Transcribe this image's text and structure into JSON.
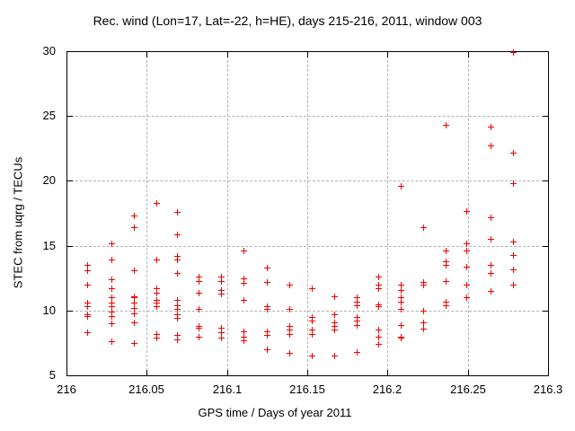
{
  "window": {
    "background": "#ffffff",
    "border_color": "#000000",
    "text_color": "#000000"
  },
  "chart_data": {
    "type": "scatter",
    "title": "Rec. wind (Lon=17, Lat=-22, h=HE), days 215-216, 2011, window 003",
    "xlabel": "GPS time / Days of year 2011",
    "ylabel": "STEC from uqrg / TECUs",
    "xlim": [
      216,
      216.3
    ],
    "ylim": [
      5,
      30
    ],
    "xticks": [
      216,
      216.05,
      216.1,
      216.15,
      216.2,
      216.25,
      216.3
    ],
    "xtick_labels": [
      "216",
      "216.05",
      "216.1",
      "216.15",
      "216.2",
      "216.25",
      "216.3"
    ],
    "yticks": [
      5,
      10,
      15,
      20,
      25,
      30
    ],
    "ytick_labels": [
      "5",
      "10",
      "15",
      "20",
      "25",
      "30"
    ],
    "grid": true,
    "grid_color": "#b0b0b0",
    "legend": "none",
    "marker": "plus",
    "marker_color": "#ee0000",
    "series": [
      {
        "name": "STEC",
        "points": [
          [
            216.013,
            13.5
          ],
          [
            216.013,
            13.1
          ],
          [
            216.013,
            12.0
          ],
          [
            216.013,
            10.6
          ],
          [
            216.013,
            10.3
          ],
          [
            216.013,
            9.7
          ],
          [
            216.013,
            9.6
          ],
          [
            216.013,
            8.3
          ],
          [
            216.028,
            15.2
          ],
          [
            216.028,
            13.9
          ],
          [
            216.028,
            12.4
          ],
          [
            216.028,
            11.7
          ],
          [
            216.028,
            11.0
          ],
          [
            216.028,
            10.6
          ],
          [
            216.028,
            10.3
          ],
          [
            216.028,
            9.9
          ],
          [
            216.028,
            9.6
          ],
          [
            216.028,
            9.0
          ],
          [
            216.028,
            7.6
          ],
          [
            216.042,
            17.3
          ],
          [
            216.042,
            16.4
          ],
          [
            216.042,
            13.1
          ],
          [
            216.042,
            11.1
          ],
          [
            216.042,
            11.0
          ],
          [
            216.042,
            10.6
          ],
          [
            216.042,
            10.2
          ],
          [
            216.042,
            9.8
          ],
          [
            216.042,
            9.1
          ],
          [
            216.042,
            7.5
          ],
          [
            216.056,
            18.3
          ],
          [
            216.056,
            13.9
          ],
          [
            216.056,
            11.7
          ],
          [
            216.056,
            11.4
          ],
          [
            216.056,
            10.8
          ],
          [
            216.056,
            10.6
          ],
          [
            216.056,
            10.3
          ],
          [
            216.056,
            8.2
          ],
          [
            216.056,
            7.9
          ],
          [
            216.069,
            17.6
          ],
          [
            216.069,
            15.9
          ],
          [
            216.069,
            14.2
          ],
          [
            216.069,
            13.9
          ],
          [
            216.069,
            12.9
          ],
          [
            216.069,
            10.8
          ],
          [
            216.069,
            10.4
          ],
          [
            216.069,
            10.1
          ],
          [
            216.069,
            9.7
          ],
          [
            216.069,
            9.4
          ],
          [
            216.069,
            8.1
          ],
          [
            216.069,
            7.8
          ],
          [
            216.082,
            12.6
          ],
          [
            216.082,
            12.3
          ],
          [
            216.082,
            11.4
          ],
          [
            216.082,
            10.1
          ],
          [
            216.082,
            8.8
          ],
          [
            216.082,
            8.7
          ],
          [
            216.082,
            8.0
          ],
          [
            216.096,
            12.6
          ],
          [
            216.096,
            12.3
          ],
          [
            216.096,
            11.6
          ],
          [
            216.096,
            11.3
          ],
          [
            216.096,
            8.7
          ],
          [
            216.096,
            8.3
          ],
          [
            216.096,
            7.9
          ],
          [
            216.11,
            14.6
          ],
          [
            216.11,
            12.5
          ],
          [
            216.11,
            12.1
          ],
          [
            216.11,
            10.8
          ],
          [
            216.11,
            8.4
          ],
          [
            216.11,
            8.0
          ],
          [
            216.11,
            7.7
          ],
          [
            216.125,
            13.3
          ],
          [
            216.125,
            12.2
          ],
          [
            216.125,
            10.3
          ],
          [
            216.125,
            10.1
          ],
          [
            216.125,
            8.4
          ],
          [
            216.125,
            8.1
          ],
          [
            216.125,
            7.0
          ],
          [
            216.139,
            12.0
          ],
          [
            216.139,
            10.1
          ],
          [
            216.139,
            8.8
          ],
          [
            216.139,
            8.5
          ],
          [
            216.139,
            8.2
          ],
          [
            216.139,
            6.7
          ],
          [
            216.153,
            11.7
          ],
          [
            216.153,
            9.5
          ],
          [
            216.153,
            9.2
          ],
          [
            216.153,
            8.5
          ],
          [
            216.153,
            8.2
          ],
          [
            216.153,
            6.5
          ],
          [
            216.167,
            11.1
          ],
          [
            216.167,
            9.7
          ],
          [
            216.167,
            9.1
          ],
          [
            216.167,
            8.8
          ],
          [
            216.167,
            8.5
          ],
          [
            216.167,
            6.5
          ],
          [
            216.181,
            11.0
          ],
          [
            216.181,
            10.7
          ],
          [
            216.181,
            10.4
          ],
          [
            216.181,
            9.5
          ],
          [
            216.181,
            9.2
          ],
          [
            216.181,
            8.9
          ],
          [
            216.181,
            6.8
          ],
          [
            216.194,
            12.6
          ],
          [
            216.194,
            12.0
          ],
          [
            216.194,
            11.7
          ],
          [
            216.194,
            10.5
          ],
          [
            216.194,
            10.3
          ],
          [
            216.194,
            8.5
          ],
          [
            216.194,
            8.0
          ],
          [
            216.194,
            7.4
          ],
          [
            216.208,
            19.6
          ],
          [
            216.208,
            12.0
          ],
          [
            216.208,
            11.6
          ],
          [
            216.208,
            11.0
          ],
          [
            216.208,
            10.7
          ],
          [
            216.208,
            10.1
          ],
          [
            216.208,
            8.9
          ],
          [
            216.208,
            8.0
          ],
          [
            216.208,
            7.9
          ],
          [
            216.222,
            16.4
          ],
          [
            216.222,
            12.2
          ],
          [
            216.222,
            12.0
          ],
          [
            216.222,
            10.0
          ],
          [
            216.222,
            9.1
          ],
          [
            216.222,
            8.6
          ],
          [
            216.236,
            24.3
          ],
          [
            216.236,
            14.6
          ],
          [
            216.236,
            13.8
          ],
          [
            216.236,
            13.5
          ],
          [
            216.236,
            12.3
          ],
          [
            216.236,
            10.7
          ],
          [
            216.236,
            10.4
          ],
          [
            216.249,
            17.7
          ],
          [
            216.249,
            15.2
          ],
          [
            216.249,
            14.6
          ],
          [
            216.249,
            13.4
          ],
          [
            216.249,
            12.0
          ],
          [
            216.249,
            11.0
          ],
          [
            216.264,
            24.2
          ],
          [
            216.264,
            22.7
          ],
          [
            216.264,
            17.2
          ],
          [
            216.264,
            15.5
          ],
          [
            216.264,
            13.5
          ],
          [
            216.264,
            12.9
          ],
          [
            216.264,
            11.5
          ],
          [
            216.278,
            29.9
          ],
          [
            216.278,
            22.2
          ],
          [
            216.278,
            19.8
          ],
          [
            216.278,
            15.3
          ],
          [
            216.278,
            14.3
          ],
          [
            216.278,
            13.2
          ],
          [
            216.278,
            12.0
          ]
        ]
      }
    ]
  }
}
